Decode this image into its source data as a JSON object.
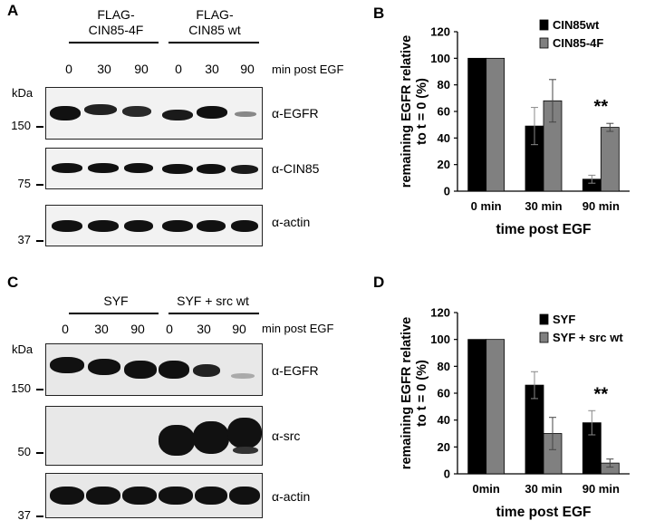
{
  "panels": {
    "A": {
      "letter": "A",
      "constructs": [
        "FLAG-\nCIN85-4F",
        "FLAG-\nCIN85 wt"
      ],
      "lanes": [
        "0",
        "30",
        "90",
        "0",
        "30",
        "90"
      ],
      "min_label": "min post EGF",
      "kda": "kDa",
      "markers": [
        "150",
        "75",
        "37"
      ],
      "antibodies": [
        "α-EGFR",
        "α-CIN85",
        "α-actin"
      ]
    },
    "C": {
      "letter": "C",
      "constructs": [
        "SYF",
        "SYF + src wt"
      ],
      "lanes": [
        "0",
        "30",
        "90",
        "0",
        "30",
        "90"
      ],
      "min_label": "min post EGF",
      "kda": "kDa",
      "markers": [
        "150",
        "50",
        "37"
      ],
      "antibodies": [
        "α-EGFR",
        "α-src",
        "α-actin"
      ]
    }
  },
  "chart_data": [
    {
      "panel": "B",
      "type": "bar",
      "title": "",
      "xlabel": "time post EGF",
      "ylabel": "remaining EGFR relative to t = 0 (%)",
      "categories": [
        "0 min",
        "30 min",
        "90 min"
      ],
      "series": [
        {
          "name": "CIN85wt",
          "color": "#000000",
          "values": [
            100,
            49,
            9
          ],
          "errors": [
            0,
            14,
            3
          ]
        },
        {
          "name": "CIN85-4F",
          "color": "#808080",
          "values": [
            100,
            68,
            48
          ],
          "errors": [
            0,
            16,
            3
          ]
        }
      ],
      "ylim": [
        0,
        120
      ],
      "yticks": [
        0,
        20,
        40,
        60,
        80,
        100,
        120
      ],
      "significance": [
        {
          "category": "90 min",
          "label": "**"
        }
      ],
      "legend": "top-right",
      "grid": false
    },
    {
      "panel": "D",
      "type": "bar",
      "title": "",
      "xlabel": "time post EGF",
      "ylabel": "remaining EGFR relative to t = 0 (%)",
      "categories": [
        "0min",
        "30 min",
        "90 min"
      ],
      "series": [
        {
          "name": "SYF",
          "color": "#000000",
          "values": [
            100,
            66,
            38
          ],
          "errors": [
            0,
            10,
            9
          ]
        },
        {
          "name": "SYF + src wt",
          "color": "#808080",
          "values": [
            100,
            30,
            8
          ],
          "errors": [
            0,
            12,
            3
          ]
        }
      ],
      "ylim": [
        0,
        120
      ],
      "yticks": [
        0,
        20,
        40,
        60,
        80,
        100,
        120
      ],
      "significance": [
        {
          "category": "90 min",
          "label": "**"
        }
      ],
      "legend": "top-right",
      "grid": false
    }
  ]
}
